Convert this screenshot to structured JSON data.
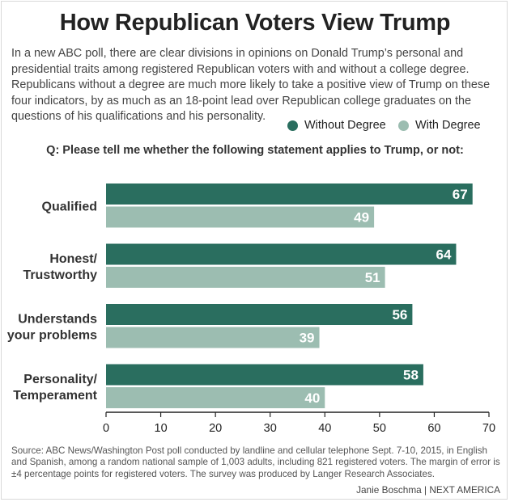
{
  "title": "How Republican Voters View Trump",
  "subtitle": "In a new ABC poll, there are clear divisions in opinions on Donald Trump’s personal and presidential traits among registered Republican voters with and without a college degree. Republicans without a degree are much more likely to take a positive view of Trump on these four indicators, by as much as an 18-point lead over Republican college graduates on the questions of his qualifications and his personality.",
  "question": "Q: Please tell me whether the following statement applies to Trump, or not:",
  "source": "Source: ABC News/Washington Post poll conducted by landline and cellular telephone Sept. 7-10, 2015, in English and Spanish, among a random national sample of 1,003 adults, including 821 registered voters. The margin of error is ±4 percentage points for registered voters. The survey was produced by Langer Research Associates.",
  "credit": "Janie Boschma | NEXT AMERICA",
  "colors": {
    "without_degree": "#2a6e5f",
    "with_degree": "#9cbdb1",
    "axis": "#222222"
  },
  "chart_data": {
    "type": "bar",
    "orientation": "horizontal",
    "categories": [
      [
        "Qualified"
      ],
      [
        "Honest/",
        "Trustworthy"
      ],
      [
        "Understands",
        "your problems"
      ],
      [
        "Personality/",
        "Temperament"
      ]
    ],
    "series": [
      {
        "name": "Without Degree",
        "values": [
          67,
          64,
          56,
          58
        ]
      },
      {
        "name": "With Degree",
        "values": [
          49,
          51,
          39,
          40
        ]
      }
    ],
    "xlim": [
      0,
      70
    ],
    "xticks": [
      0,
      10,
      20,
      30,
      40,
      50,
      60,
      70
    ],
    "grid": false,
    "legend_position": "top-right",
    "data_labels": "inside-end"
  }
}
